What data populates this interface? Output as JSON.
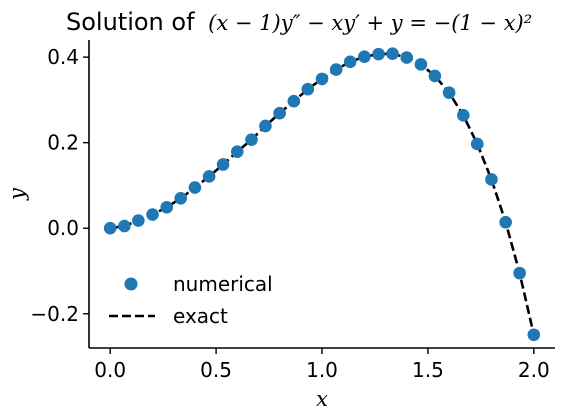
{
  "chart_data": {
    "type": "line",
    "title_prefix": "Solution of",
    "title_equation": "(x − 1)y″ − xy′ + y = −(1 − x)²",
    "xlabel": "x",
    "ylabel": "y",
    "xlim": [
      -0.1,
      2.1
    ],
    "ylim": [
      -0.28,
      0.44
    ],
    "xticks": [
      0.0,
      0.5,
      1.0,
      1.5,
      2.0
    ],
    "xtick_labels": [
      "0.0",
      "0.5",
      "1.0",
      "1.5",
      "2.0"
    ],
    "yticks": [
      -0.2,
      0.0,
      0.2,
      0.4
    ],
    "ytick_labels": [
      "−0.2",
      "0.0",
      "0.2",
      "0.4"
    ],
    "grid": false,
    "legend_position": "lower-left",
    "series": [
      {
        "name": "numerical",
        "style": "markers",
        "color": "#1f77b4",
        "x": [
          0.0,
          0.067,
          0.133,
          0.2,
          0.267,
          0.333,
          0.4,
          0.467,
          0.533,
          0.6,
          0.667,
          0.733,
          0.8,
          0.867,
          0.933,
          1.0,
          1.067,
          1.133,
          1.2,
          1.267,
          1.333,
          1.4,
          1.467,
          1.533,
          1.6,
          1.667,
          1.733,
          1.8,
          1.867,
          1.933,
          2.0
        ],
        "y": [
          0.0,
          0.005,
          0.018,
          0.032,
          0.049,
          0.07,
          0.095,
          0.121,
          0.149,
          0.179,
          0.207,
          0.239,
          0.269,
          0.297,
          0.325,
          0.349,
          0.371,
          0.389,
          0.401,
          0.407,
          0.408,
          0.399,
          0.383,
          0.356,
          0.317,
          0.264,
          0.197,
          0.114,
          0.014,
          -0.105,
          -0.249
        ]
      },
      {
        "name": "exact",
        "style": "dashed-line",
        "color": "#000000",
        "x": [
          0.0,
          0.067,
          0.133,
          0.2,
          0.267,
          0.333,
          0.4,
          0.467,
          0.533,
          0.6,
          0.667,
          0.733,
          0.8,
          0.867,
          0.933,
          1.0,
          1.067,
          1.133,
          1.2,
          1.267,
          1.333,
          1.4,
          1.467,
          1.533,
          1.6,
          1.667,
          1.733,
          1.8,
          1.867,
          1.933,
          2.0
        ],
        "y": [
          0.0,
          0.005,
          0.018,
          0.032,
          0.049,
          0.07,
          0.095,
          0.121,
          0.149,
          0.179,
          0.207,
          0.239,
          0.269,
          0.297,
          0.325,
          0.349,
          0.371,
          0.389,
          0.401,
          0.407,
          0.408,
          0.399,
          0.383,
          0.356,
          0.317,
          0.264,
          0.197,
          0.114,
          0.014,
          -0.105,
          -0.249
        ]
      }
    ]
  }
}
